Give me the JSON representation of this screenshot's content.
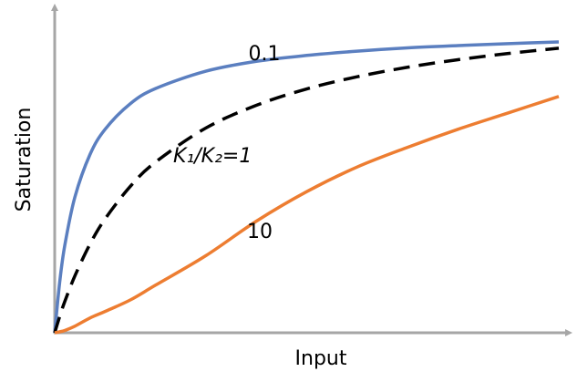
{
  "chart_data": {
    "type": "line",
    "xlabel": "Input",
    "ylabel": "Saturation",
    "xlim": [
      0,
      100
    ],
    "ylim": [
      0,
      100
    ],
    "x": [
      0,
      1,
      2,
      4,
      7,
      10,
      15,
      20,
      30,
      40,
      50,
      60,
      70,
      80,
      90,
      100
    ],
    "series": [
      {
        "name": "0.1",
        "color": "#5b7fc0",
        "dash": false,
        "values": [
          0,
          15.5,
          26.6,
          41.3,
          54.3,
          62,
          69.8,
          74.4,
          79.7,
          82.7,
          84.5,
          85.8,
          86.8,
          87.5,
          88.1,
          88.6
        ]
      },
      {
        "name": "K₁/K₂=1",
        "color": "#000000",
        "dash": true,
        "values": [
          0,
          5,
          9.5,
          17.3,
          27,
          34.7,
          44.6,
          52,
          62.4,
          69.3,
          74.3,
          78,
          80.9,
          83.2,
          85.1,
          86.7
        ]
      },
      {
        "name": "10",
        "color": "#ed7d31",
        "dash": false,
        "values": [
          0,
          0.3,
          0.7,
          2,
          4.5,
          6.5,
          10,
          14.5,
          23.5,
          34,
          43,
          50.5,
          56.5,
          62,
          67,
          72
        ]
      }
    ]
  }
}
